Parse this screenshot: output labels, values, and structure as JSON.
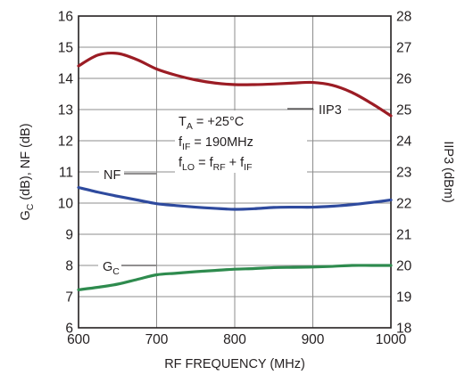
{
  "chart_data": {
    "type": "line",
    "xlabel": "RF FREQUENCY (MHz)",
    "ylabel_left": {
      "main": "G",
      "sub": "C",
      "rest": " (dB), NF (dB)"
    },
    "ylabel_right": "IIP3 (dBm)",
    "xlim": [
      600,
      1000
    ],
    "ylim_left": [
      6,
      16
    ],
    "ylim_right": [
      18,
      28
    ],
    "x_ticks": [
      600,
      700,
      800,
      900,
      1000
    ],
    "y_ticks_left": [
      6,
      7,
      8,
      9,
      10,
      11,
      12,
      13,
      14,
      15,
      16
    ],
    "y_ticks_right": [
      18,
      19,
      20,
      21,
      22,
      23,
      24,
      25,
      26,
      27,
      28
    ],
    "grid": true,
    "annotations": {
      "ta": {
        "main": "T",
        "sub": "A",
        "rest": " = +25°C"
      },
      "fif": {
        "main": "f",
        "sub": "IF",
        "rest": " = 190MHz"
      },
      "flo": {
        "p1": "f",
        "s1": "LO",
        "p2": " = f",
        "s2": "RF",
        "p3": " + f",
        "s3": "IF"
      }
    },
    "series": [
      {
        "name": "IIP3",
        "axis": "right",
        "color": "#9b1c24",
        "x": [
          600,
          625,
          650,
          675,
          700,
          725,
          750,
          775,
          800,
          825,
          850,
          875,
          900,
          925,
          950,
          975,
          1000
        ],
        "y": [
          26.4,
          26.75,
          26.8,
          26.6,
          26.3,
          26.1,
          25.95,
          25.85,
          25.8,
          25.8,
          25.82,
          25.85,
          25.87,
          25.78,
          25.55,
          25.2,
          24.8
        ]
      },
      {
        "name": "NF",
        "axis": "left",
        "color": "#2e4a9e",
        "x": [
          600,
          625,
          650,
          675,
          700,
          725,
          750,
          775,
          800,
          825,
          850,
          875,
          900,
          925,
          950,
          975,
          1000
        ],
        "y": [
          10.5,
          10.35,
          10.22,
          10.1,
          9.98,
          9.92,
          9.87,
          9.83,
          9.8,
          9.82,
          9.86,
          9.87,
          9.87,
          9.9,
          9.95,
          10.02,
          10.1
        ]
      },
      {
        "name": "G",
        "name_sub": "C",
        "axis": "left",
        "color": "#2e8b4e",
        "x": [
          600,
          625,
          650,
          675,
          700,
          725,
          750,
          775,
          800,
          825,
          850,
          875,
          900,
          925,
          950,
          975,
          1000
        ],
        "y": [
          7.22,
          7.3,
          7.4,
          7.55,
          7.7,
          7.75,
          7.8,
          7.84,
          7.88,
          7.9,
          7.93,
          7.94,
          7.95,
          7.97,
          8.0,
          8.0,
          8.0
        ]
      }
    ]
  }
}
